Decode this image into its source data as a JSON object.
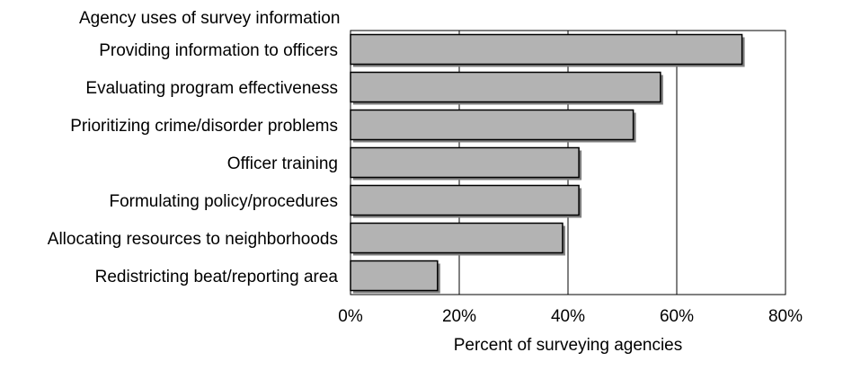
{
  "chart_data": {
    "type": "bar",
    "orientation": "horizontal",
    "title": "Agency uses of survey information",
    "xlabel": "Percent of surveying agencies",
    "ylabel": "",
    "categories": [
      "Providing information to officers",
      "Evaluating program effectiveness",
      "Prioritizing crime/disorder problems",
      "Officer training",
      "Formulating policy/procedures",
      "Allocating resources to neighborhoods",
      "Redistricting beat/reporting area"
    ],
    "values": [
      72,
      57,
      52,
      42,
      42,
      39,
      16
    ],
    "xlim": [
      0,
      80
    ],
    "x_ticks": [
      0,
      20,
      40,
      60,
      80
    ],
    "x_tick_labels": [
      "0%",
      "20%",
      "40%",
      "60%",
      "80%"
    ],
    "grid": "vertical",
    "legend": "none",
    "colors": {
      "bar_fill": "#b3b3b3",
      "bar_shadow": "#7f7f7f",
      "bar_edge": "#000000"
    }
  }
}
